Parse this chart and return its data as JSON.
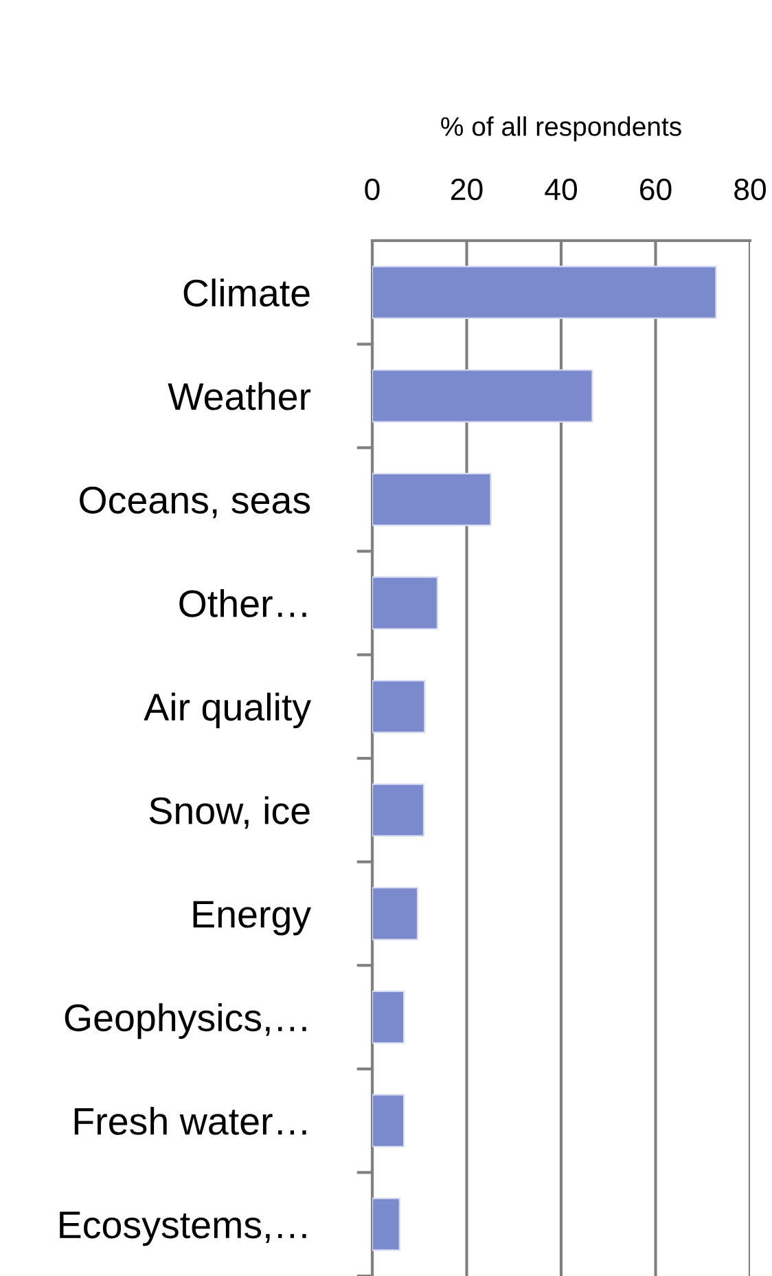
{
  "chart_data": {
    "type": "bar",
    "orientation": "horizontal",
    "xlabel": "% of all respondents",
    "categories": [
      "Climate",
      "Weather",
      "Oceans, seas",
      "Other…",
      "Air quality",
      "Snow, ice",
      "Energy",
      "Geophysics,…",
      "Fresh water…",
      "Ecosystems,…"
    ],
    "values": [
      72.8,
      46.6,
      25.1,
      13.8,
      11.1,
      10.9,
      9.6,
      6.7,
      6.7,
      5.8
    ],
    "color": "#7b89cd",
    "xlim": [
      0,
      80
    ],
    "xticks": [
      0,
      20,
      40,
      60,
      80
    ],
    "grid": "x"
  }
}
